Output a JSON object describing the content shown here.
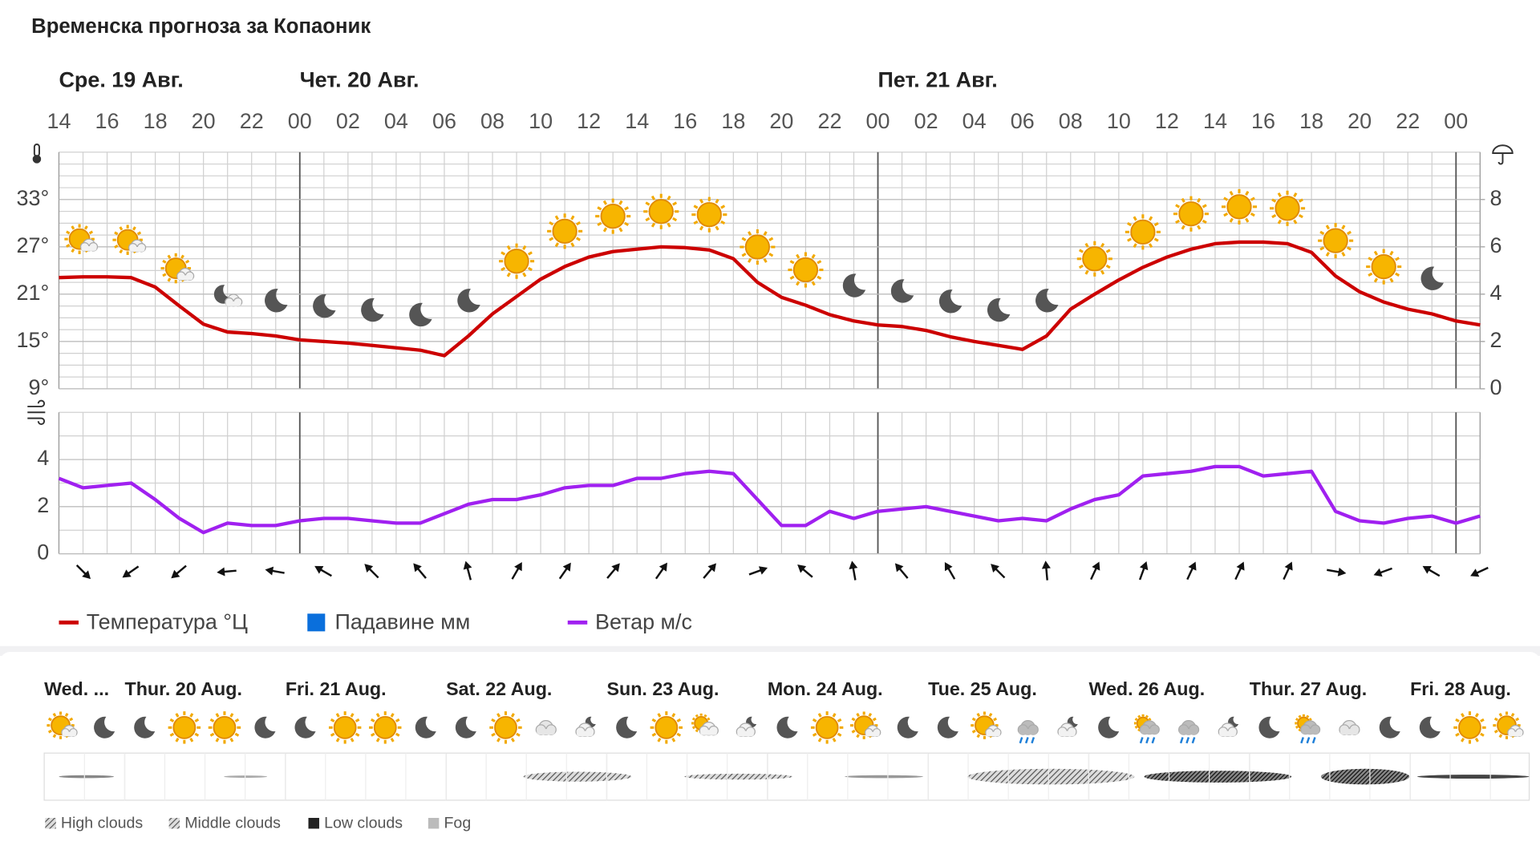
{
  "title": "Временска прогноза за Копаоник",
  "chart_data": [
    {
      "type": "line",
      "categories": [
        "14",
        null,
        "16",
        null,
        "18",
        null,
        "20",
        null,
        "22",
        null,
        "00",
        null,
        "02",
        null,
        "04",
        null,
        "06",
        null,
        "08",
        null,
        "10",
        null,
        "12",
        null,
        "14",
        null,
        "16",
        null,
        "18",
        null,
        "20",
        null,
        "22",
        null,
        "00",
        null,
        "02",
        null,
        "04",
        null,
        "06",
        null,
        "08",
        null,
        "10",
        null,
        "12",
        null,
        "14",
        null,
        "16",
        null,
        "18",
        null,
        "20",
        null,
        "22",
        null,
        "00",
        null
      ],
      "days": [
        "Сре. 19 Авг.",
        null,
        null,
        null,
        null,
        null,
        null,
        null,
        null,
        null,
        "Чет. 20 Авг.",
        null,
        null,
        null,
        null,
        null,
        null,
        null,
        null,
        null,
        null,
        null,
        null,
        null,
        null,
        null,
        null,
        null,
        null,
        null,
        null,
        null,
        null,
        null,
        "Пет. 21 Авг.",
        null,
        null,
        null,
        null,
        null,
        null,
        null,
        null,
        null,
        null,
        null,
        null,
        null,
        null,
        null,
        null,
        null,
        null,
        null,
        null,
        null,
        null,
        null,
        null,
        null
      ],
      "series": [
        {
          "name": "Температура °Ц",
          "color": "#cc0000",
          "values": [
            23.1,
            23.2,
            23.2,
            23.1,
            21.9,
            19.5,
            17.2,
            16.2,
            16.0,
            15.7,
            15.2,
            15.0,
            14.8,
            14.5,
            14.2,
            13.9,
            13.2,
            15.7,
            18.5,
            20.7,
            22.9,
            24.5,
            25.7,
            26.4,
            26.7,
            27.0,
            26.9,
            26.6,
            25.5,
            22.5,
            20.6,
            19.6,
            18.4,
            17.6,
            17.1,
            16.9,
            16.4,
            15.6,
            15.0,
            14.5,
            14.0,
            15.7,
            19.1,
            21.0,
            22.8,
            24.4,
            25.7,
            26.7,
            27.4,
            27.6,
            27.6,
            27.4,
            26.3,
            23.3,
            21.3,
            20.0,
            19.1,
            18.5,
            17.6,
            17.1
          ]
        },
        {
          "name": "Падавине мм",
          "color": "#0a6fdc",
          "axis": "y2",
          "values": [
            0,
            0,
            0,
            0,
            0,
            0,
            0,
            0,
            0,
            0,
            0,
            0,
            0,
            0,
            0,
            0,
            0,
            0,
            0,
            0,
            0,
            0,
            0,
            0,
            0,
            0,
            0,
            0,
            0,
            0,
            0,
            0,
            0,
            0,
            0,
            0,
            0,
            0,
            0,
            0,
            0,
            0,
            0,
            0,
            0,
            0,
            0,
            0,
            0,
            0,
            0,
            0,
            0,
            0,
            0,
            0,
            0,
            0,
            0,
            0
          ]
        }
      ],
      "ylim": [
        9,
        39
      ],
      "yticks": [
        {
          "value": 9,
          "label": "9°"
        },
        {
          "value": 15,
          "label": "15°"
        },
        {
          "value": 21,
          "label": "21°"
        },
        {
          "value": 27,
          "label": "27°"
        },
        {
          "value": 33,
          "label": "33°"
        }
      ],
      "y2lim": [
        0,
        10
      ],
      "y2ticks": [
        0,
        2,
        4,
        6,
        8
      ],
      "grid": true
    },
    {
      "type": "line",
      "series": [
        {
          "name": "Ветар м/с",
          "color": "#a020f0",
          "values": [
            3.2,
            2.8,
            2.9,
            3.0,
            2.3,
            1.5,
            0.9,
            1.3,
            1.2,
            1.2,
            1.4,
            1.5,
            1.5,
            1.4,
            1.3,
            1.3,
            1.7,
            2.1,
            2.3,
            2.3,
            2.5,
            2.8,
            2.9,
            2.9,
            3.2,
            3.2,
            3.4,
            3.5,
            3.4,
            2.3,
            1.2,
            1.2,
            1.8,
            1.5,
            1.8,
            1.9,
            2.0,
            1.8,
            1.6,
            1.4,
            1.5,
            1.4,
            1.9,
            2.3,
            2.5,
            3.3,
            3.4,
            3.5,
            3.7,
            3.7,
            3.3,
            3.4,
            3.5,
            1.8,
            1.4,
            1.3,
            1.5,
            1.6,
            1.3,
            1.6
          ]
        }
      ],
      "wind_direction": [
        null,
        135,
        null,
        235,
        null,
        230,
        null,
        265,
        null,
        280,
        null,
        300,
        null,
        315,
        null,
        320,
        null,
        345,
        null,
        30,
        null,
        35,
        null,
        40,
        null,
        35,
        null,
        40,
        null,
        70,
        null,
        310,
        null,
        350,
        null,
        320,
        null,
        330,
        null,
        315,
        null,
        355,
        null,
        25,
        null,
        20,
        null,
        25,
        null,
        25,
        null,
        25,
        null,
        100,
        null,
        250,
        null,
        300,
        null,
        245
      ],
      "ylim": [
        0,
        6
      ],
      "yticks": [
        0,
        2,
        4
      ],
      "grid": true
    }
  ],
  "forecast_strip": {
    "days": [
      "Wed. ...",
      "Thur. 20 Aug.",
      "Fri. 21 Aug.",
      "Sat. 22 Aug.",
      "Sun. 23 Aug.",
      "Mon. 24 Aug.",
      "Tue. 25 Aug.",
      "Wed. 26 Aug.",
      "Thur. 27 Aug.",
      "Fri. 28 Aug."
    ],
    "legend": [
      "High clouds",
      "Middle clouds",
      "Low clouds",
      "Fog"
    ]
  }
}
